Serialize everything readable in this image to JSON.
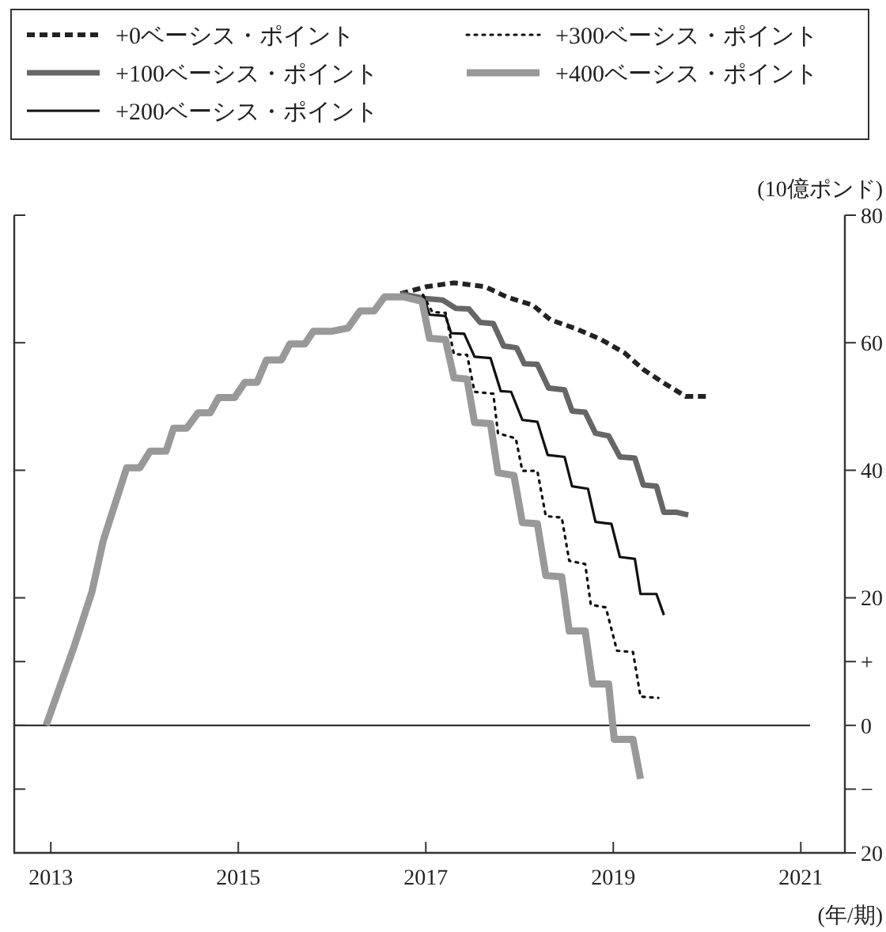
{
  "chart_data": {
    "type": "line",
    "xlabel": "(年/期)",
    "ylabel": "(10億ポンド)",
    "xlim": [
      2012.61,
      2021.47
    ],
    "xticks": [
      2013,
      2015,
      2017,
      2019,
      2021
    ],
    "ylim": [
      -20,
      80
    ],
    "yticks": [
      {
        "value": -20,
        "label": "20"
      },
      {
        "value": -10,
        "label": "−"
      },
      0,
      {
        "value": 10,
        "label": "+"
      },
      20,
      40,
      60,
      80
    ],
    "grid": false,
    "legend": "top",
    "marker": "none",
    "ref_lines": [
      {
        "axis": "y",
        "value": 0,
        "color": "#333333"
      }
    ],
    "series": [
      {
        "name": "+0ベーシス・ポイント",
        "color": "#222222",
        "line_style": "dashed",
        "x": [
          2016.73,
          2017.01,
          2017.3,
          2017.63,
          2017.86,
          2018.14,
          2018.33,
          2018.62,
          2018.87,
          2019.12,
          2019.32,
          2019.57,
          2019.77,
          2019.99
        ],
        "values": [
          67.7,
          68.8,
          69.4,
          68.8,
          67.2,
          65.9,
          63.6,
          62.1,
          60.5,
          58.4,
          55.8,
          53.4,
          51.6,
          51.6
        ]
      },
      {
        "name": "+100ベーシス・ポイント",
        "color": "#666666",
        "line_style": "solid",
        "x": [
          2016.73,
          2017.01,
          2017.18,
          2017.32,
          2017.46,
          2017.58,
          2017.72,
          2017.83,
          2017.97,
          2018.05,
          2018.19,
          2018.31,
          2018.48,
          2018.56,
          2018.7,
          2018.81,
          2018.95,
          2019.07,
          2019.23,
          2019.32,
          2019.46,
          2019.54,
          2019.68,
          2019.8
        ],
        "values": [
          67.7,
          66.9,
          66.7,
          65.4,
          65.3,
          63.2,
          63,
          59.5,
          59.2,
          56.7,
          56.6,
          52.9,
          52.6,
          49.3,
          49.1,
          45.8,
          45.4,
          42.1,
          41.9,
          37.7,
          37.5,
          33.4,
          33.4,
          33
        ]
      },
      {
        "name": "+200ベーシス・ポイント",
        "color": "#111111",
        "line_style": "solid",
        "x": [
          2016.97,
          2017.04,
          2017.21,
          2017.27,
          2017.41,
          2017.52,
          2017.69,
          2017.8,
          2017.91,
          2018.03,
          2018.19,
          2018.3,
          2018.48,
          2018.56,
          2018.73,
          2018.81,
          2018.98,
          2019.07,
          2019.23,
          2019.29,
          2019.46,
          2019.54
        ],
        "values": [
          67.5,
          64.4,
          64.2,
          61.5,
          61.4,
          57.8,
          57.6,
          52.4,
          52.3,
          47.9,
          47.6,
          42.4,
          42.1,
          37.5,
          37.1,
          31.9,
          31.6,
          26.4,
          26.1,
          20.6,
          20.6,
          17.3
        ]
      },
      {
        "name": "+300ベーシス・ポイント",
        "color": "#111111",
        "line_style": "dotted",
        "x": [
          2016.97,
          2017.07,
          2017.21,
          2017.3,
          2017.44,
          2017.52,
          2017.72,
          2017.77,
          2017.96,
          2018.03,
          2018.19,
          2018.28,
          2018.45,
          2018.53,
          2018.7,
          2018.76,
          2018.92,
          2019.04,
          2019.21,
          2019.29,
          2019.48
        ],
        "values": [
          67.5,
          64.8,
          64.7,
          58.2,
          58.1,
          52.3,
          52,
          45.8,
          45,
          39.9,
          39.9,
          32.8,
          32.6,
          25.8,
          25.3,
          18.9,
          18.5,
          11.7,
          11.5,
          4.5,
          4.3
        ]
      },
      {
        "name": "+400ベーシス・ポイント",
        "color": "#999999",
        "line_style": "solid",
        "x": [
          2012.95,
          2013.25,
          2013.44,
          2013.56,
          2013.81,
          2013.95,
          2014.06,
          2014.23,
          2014.31,
          2014.45,
          2014.57,
          2014.7,
          2014.79,
          2014.96,
          2015.07,
          2015.2,
          2015.3,
          2015.46,
          2015.55,
          2015.71,
          2015.8,
          2016,
          2016.17,
          2016.3,
          2016.45,
          2016.56,
          2016.76,
          2016.96,
          2017.04,
          2017.21,
          2017.3,
          2017.44,
          2017.52,
          2017.69,
          2017.77,
          2017.94,
          2018.03,
          2018.19,
          2018.28,
          2018.45,
          2018.53,
          2018.7,
          2018.78,
          2018.95,
          2019.01,
          2019.21,
          2019.29
        ],
        "values": [
          0,
          12.4,
          21,
          29,
          40.4,
          40.4,
          43,
          43,
          46.6,
          46.6,
          49,
          49,
          51.4,
          51.4,
          53.8,
          53.8,
          57.3,
          57.3,
          59.8,
          59.8,
          61.8,
          61.8,
          62.3,
          65,
          65,
          67.2,
          67.2,
          66.5,
          60.7,
          60.5,
          54.5,
          54.3,
          47.5,
          47.3,
          39.6,
          39.2,
          31.8,
          31.6,
          23.5,
          23.3,
          14.8,
          14.8,
          6.5,
          6.5,
          -2.2,
          -2.2,
          -8.4
        ]
      }
    ]
  }
}
